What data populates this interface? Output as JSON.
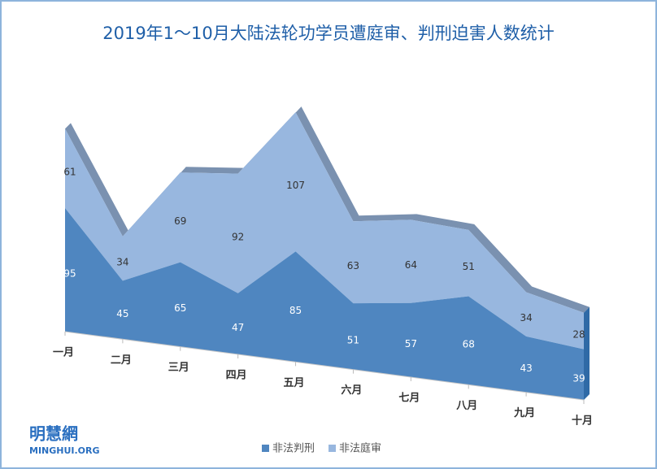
{
  "chart_data": {
    "type": "area",
    "stacked": true,
    "title": "2019年1～10月大陆法轮功学员遭庭审、判刑迫害人数统计",
    "categories": [
      "一月",
      "二月",
      "三月",
      "四月",
      "五月",
      "六月",
      "七月",
      "八月",
      "九月",
      "十月"
    ],
    "series": [
      {
        "name": "非法判刑",
        "color": "#4f86c0",
        "values": [
          95,
          45,
          65,
          47,
          85,
          51,
          57,
          68,
          43,
          39
        ]
      },
      {
        "name": "非法庭审",
        "color": "#98b7df",
        "values": [
          61,
          34,
          69,
          92,
          107,
          63,
          64,
          51,
          34,
          28
        ]
      }
    ],
    "legend": "bottom",
    "logo": {
      "name": "明慧網",
      "site": "MINGHUI.ORG"
    }
  }
}
